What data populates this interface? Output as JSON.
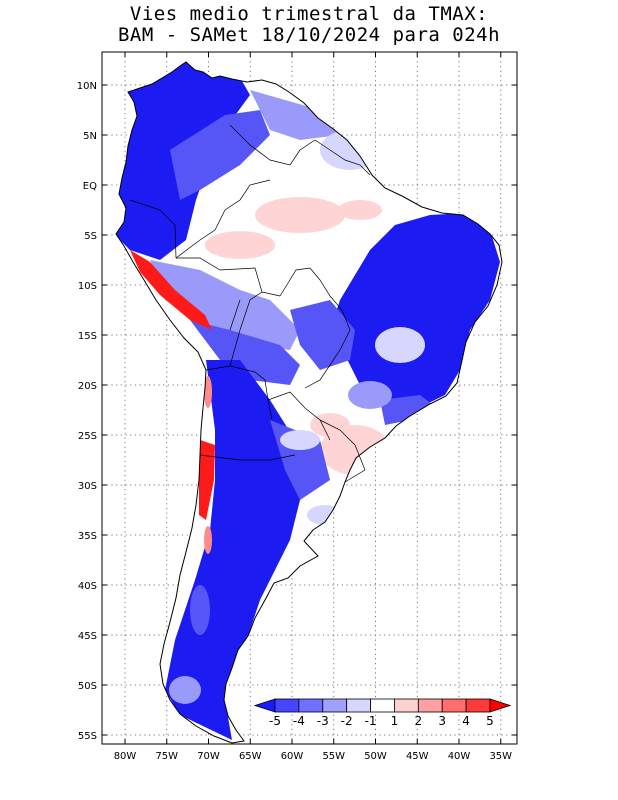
{
  "title": {
    "line1": "Vies medio trimestral da TMAX:",
    "line2": "BAM - SAMet 18/10/2024  para 024h"
  },
  "axes": {
    "lat_labels": [
      "10N",
      "5N",
      "EQ",
      "5S",
      "10S",
      "15S",
      "20S",
      "25S",
      "30S",
      "35S",
      "40S",
      "45S",
      "50S",
      "55S"
    ],
    "lon_labels": [
      "80W",
      "75W",
      "70W",
      "65W",
      "60W",
      "55W",
      "50W",
      "45W",
      "40W",
      "35W"
    ]
  },
  "colorbar": {
    "labels": [
      "-5",
      "-4",
      "-3",
      "-2",
      "-1",
      "1",
      "2",
      "3",
      "4",
      "5"
    ],
    "colors": [
      "#1b1bff",
      "#4646ff",
      "#7070ff",
      "#a0a0ff",
      "#d6d6ff",
      "#ffffff",
      "#ffd2d2",
      "#ffa0a0",
      "#ff6e6e",
      "#ff3a3a",
      "#ff0000"
    ]
  },
  "field_colors": {
    "strong_cold": "#1c1cf2",
    "cold": "#5656f7",
    "mild_cold": "#9a9afb",
    "light_cold": "#d6d6ff",
    "neutral": "#ffffff",
    "light_warm": "#ffd4d4",
    "warm": "#ff8a8a",
    "hot": "#ff1a1a"
  },
  "grid": true
}
